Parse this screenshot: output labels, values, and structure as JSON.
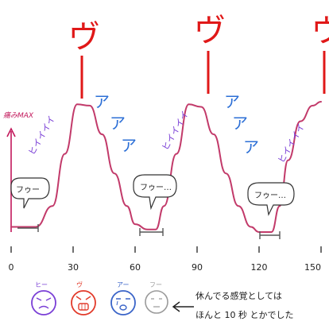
{
  "chart_data": {
    "type": "line",
    "title": "",
    "ylabel": "痛みMAX",
    "xlabel": "",
    "x_ticks": [
      "0",
      "30",
      "60",
      "90",
      "120",
      "150"
    ],
    "xlim": [
      0,
      150
    ],
    "ylim": [
      0,
      1
    ],
    "grid": false,
    "series": [
      {
        "x": [
          0,
          12,
          20,
          26,
          32,
          38,
          44,
          50,
          56,
          60,
          66,
          70,
          74,
          80,
          86,
          92,
          98,
          104,
          110,
          116,
          120,
          126,
          130,
          134,
          140,
          146,
          150
        ],
        "values": [
          0.04,
          0.04,
          0.2,
          0.6,
          0.98,
          0.97,
          0.75,
          0.45,
          0.2,
          0.06,
          0.02,
          0.02,
          0.2,
          0.6,
          0.98,
          0.96,
          0.75,
          0.45,
          0.2,
          0.04,
          0.0,
          0.0,
          0.2,
          0.55,
          0.85,
          0.97,
          1.0
        ]
      }
    ],
    "rest_bubbles": [
      {
        "text": "フゥー",
        "x": 8
      },
      {
        "text": "フゥー…",
        "x": 66
      },
      {
        "text": "フゥー…",
        "x": 125
      }
    ],
    "annotations": {
      "big_cry": "ヴ",
      "rise": "ヒイイイイ",
      "fall": [
        "ア",
        "ア",
        "ア"
      ]
    },
    "faces": [
      {
        "caption": "ヒー",
        "color": "#7a3fd6",
        "icon": "pained-face-icon"
      },
      {
        "caption": "ヴ",
        "color": "#e23a2a",
        "icon": "screaming-face-icon"
      },
      {
        "caption": "アー",
        "color": "#3a64c8",
        "icon": "crying-face-icon"
      },
      {
        "caption": "フー",
        "color": "#9a9a9a",
        "icon": "calm-face-icon"
      }
    ],
    "note": [
      "休んでる感覚としては",
      "ほんと 10 秒 とかでした"
    ],
    "colors": {
      "curve": "#c23a6a",
      "curve_dark": "#5a2a3a",
      "axis": "#c2185b",
      "big_cry": "#e01818",
      "fall_text": "#2c6fd6",
      "rise_text": "#7a3fd6",
      "ink": "#1a1a1a"
    }
  }
}
